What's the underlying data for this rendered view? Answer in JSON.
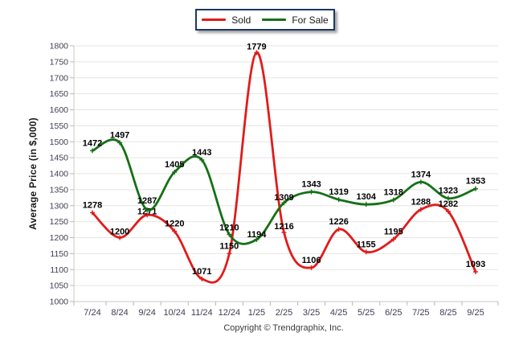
{
  "y_axis_title": "Average Price (in $,000)",
  "footer": "Copyright © Trendgraphix, Inc.",
  "chart_data": {
    "type": "line",
    "title": "",
    "xlabel": "",
    "ylabel": "Average Price (in $,000)",
    "categories": [
      "7/24",
      "8/24",
      "9/24",
      "10/24",
      "11/24",
      "12/24",
      "1/25",
      "2/25",
      "3/25",
      "4/25",
      "5/25",
      "6/25",
      "7/25",
      "8/25",
      "9/25"
    ],
    "series": [
      {
        "name": "Sold",
        "color": "#e11b1b",
        "values": [
          1278,
          1200,
          1271,
          1220,
          1071,
          1150,
          1779,
          1216,
          1106,
          1226,
          1155,
          1195,
          1288,
          1282,
          1093
        ]
      },
      {
        "name": "For Sale",
        "color": "#167016",
        "values": [
          1472,
          1497,
          1287,
          1405,
          1443,
          1210,
          1194,
          1309,
          1343,
          1319,
          1304,
          1318,
          1374,
          1323,
          1353
        ]
      }
    ],
    "ylim": [
      1000,
      1800
    ],
    "ytick_step": 50,
    "grid": true,
    "smooth": true,
    "markers": "plus",
    "data_labels": true,
    "legend_position": "top-center"
  },
  "colors": {
    "grid": "#e8e5e0",
    "axis": "#c9c9c9",
    "tick": "#b9b9b9",
    "tick_text": "#3e3e52",
    "data_label": "#000000",
    "legend_border": "#1b3a64"
  }
}
